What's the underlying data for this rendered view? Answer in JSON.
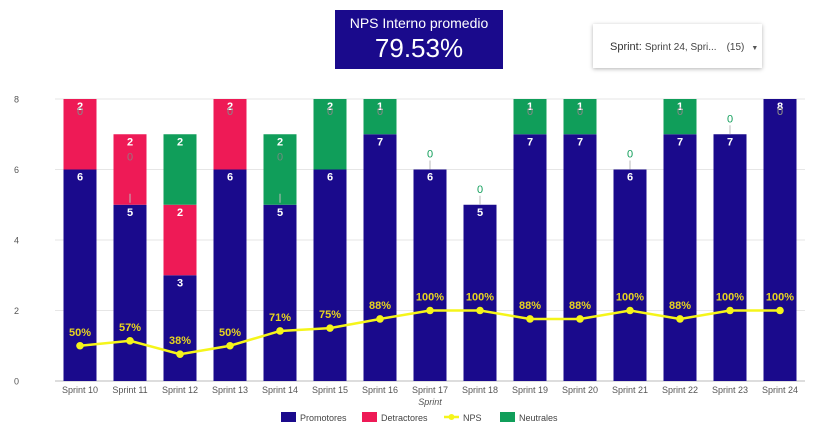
{
  "kpi": {
    "title": "NPS Interno promedio",
    "value": "79.53%"
  },
  "filter": {
    "label": "Sprint",
    "value": "Sprint 24, Spri...",
    "count": "(15)",
    "icon": "caret-down-icon"
  },
  "colors": {
    "promotores": "#1a0a8c",
    "detractores": "#ee1a56",
    "neutrales": "#109e5a",
    "nps": "#f5f51a",
    "nps_label": "#e8d51f"
  },
  "chart_data": {
    "type": "bar",
    "stacked": true,
    "xlabel": "Sprint",
    "ylim": [
      0,
      8
    ],
    "yticks": [
      0,
      2,
      4,
      6,
      8
    ],
    "grid": true,
    "legend_position": "bottom",
    "categories": [
      "Sprint 10",
      "Sprint 11",
      "Sprint 12",
      "Sprint 13",
      "Sprint 14",
      "Sprint 15",
      "Sprint 16",
      "Sprint 17",
      "Sprint 18",
      "Sprint 19",
      "Sprint 20",
      "Sprint 21",
      "Sprint 22",
      "Sprint 23",
      "Sprint 24"
    ],
    "series": [
      {
        "name": "Promotores",
        "type": "bar",
        "values": [
          6,
          5,
          3,
          6,
          5,
          6,
          7,
          6,
          5,
          7,
          7,
          6,
          7,
          7,
          8
        ]
      },
      {
        "name": "Detractores",
        "type": "bar",
        "values": [
          2,
          2,
          2,
          2,
          0,
          0,
          0,
          0,
          0,
          0,
          0,
          0,
          0,
          0,
          0
        ]
      },
      {
        "name": "Neutrales",
        "type": "bar",
        "values": [
          0,
          0,
          2,
          0,
          2,
          2,
          1,
          0,
          0,
          1,
          1,
          0,
          1,
          0,
          0
        ]
      },
      {
        "name": "NPS",
        "type": "line",
        "values": [
          0.5,
          0.57,
          0.38,
          0.5,
          0.71,
          0.75,
          0.88,
          1,
          1,
          0.88,
          0.88,
          1,
          0.88,
          1,
          1
        ],
        "labels": [
          "50%",
          "57%",
          "38%",
          "50%",
          "71%",
          "75%",
          "88%",
          "100%",
          "100%",
          "88%",
          "88%",
          "100%",
          "88%",
          "100%",
          "100%"
        ]
      }
    ]
  }
}
